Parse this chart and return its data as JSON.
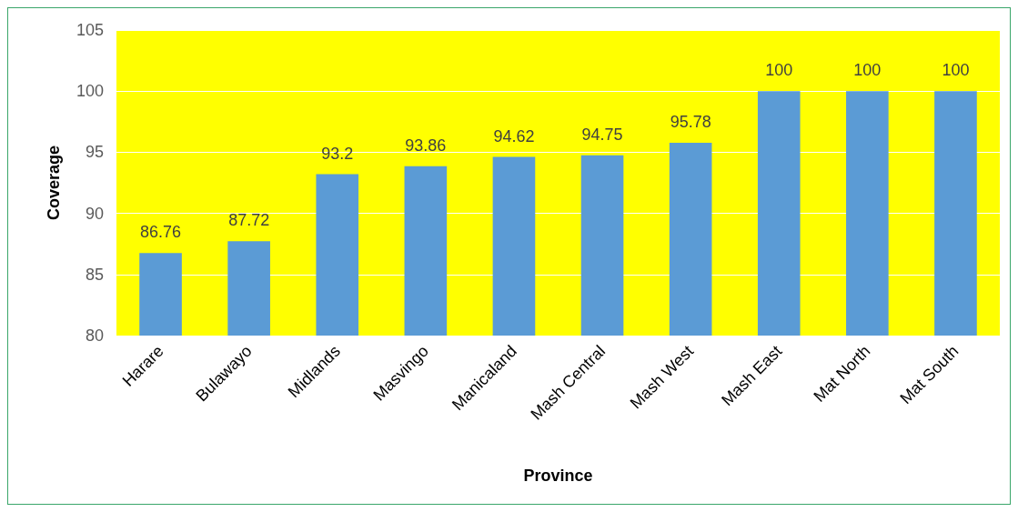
{
  "chart_data": {
    "type": "bar",
    "xlabel": "Province",
    "ylabel": "Coverage",
    "categories": [
      "Harare",
      "Bulawayo",
      "Midlands",
      "Masvingo",
      "Manicaland",
      "Mash Central",
      "Mash West",
      "Mash East",
      "Mat North",
      "Mat South"
    ],
    "values": [
      86.76,
      87.72,
      93.2,
      93.86,
      94.62,
      94.75,
      95.78,
      100,
      100,
      100
    ],
    "color": "#5b9bd5",
    "ylim": [
      80,
      105
    ],
    "yticks": [
      80,
      85,
      90,
      95,
      100,
      105
    ],
    "grid": "y",
    "data_labels": true
  }
}
